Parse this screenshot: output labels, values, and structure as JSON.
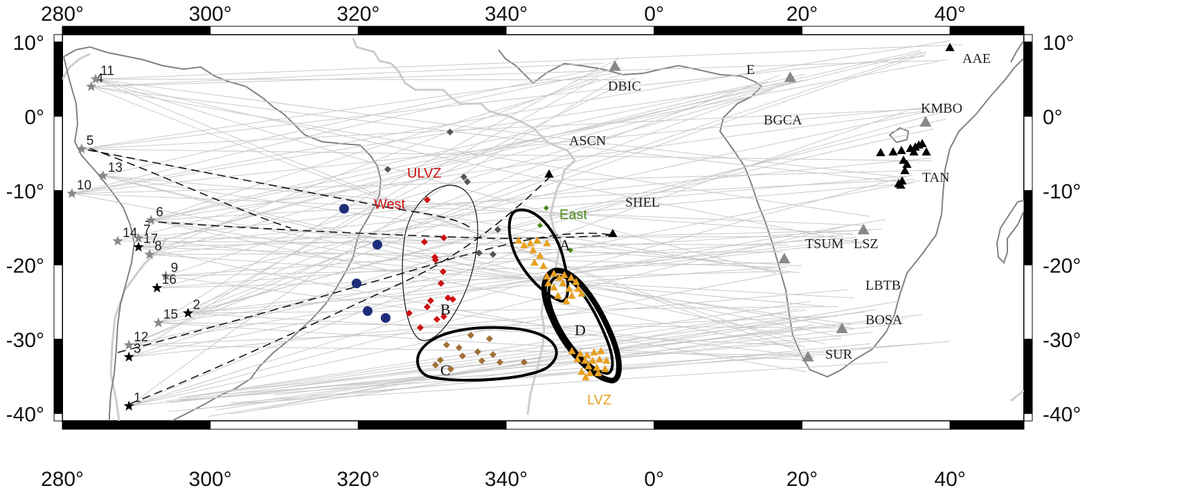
{
  "map": {
    "x_ticks": [
      {
        "label": "280°",
        "lon": 280
      },
      {
        "label": "300°",
        "lon": 300
      },
      {
        "label": "320°",
        "lon": 320
      },
      {
        "label": "340°",
        "lon": 340
      },
      {
        "label": "0°",
        "lon": 360
      },
      {
        "label": "20°",
        "lon": 380
      },
      {
        "label": "40°",
        "lon": 400
      }
    ],
    "y_ticks": [
      {
        "label": "10°",
        "lat": 10
      },
      {
        "label": "0°",
        "lat": 0
      },
      {
        "label": "-10°",
        "lat": -10
      },
      {
        "label": "-20°",
        "lat": -20
      },
      {
        "label": "-30°",
        "lat": -30
      },
      {
        "label": "-40°",
        "lat": -40
      }
    ],
    "lon_range": [
      280,
      410
    ],
    "lat_range": [
      -41,
      11
    ],
    "colors": {
      "ray": "#c8c8c8",
      "coast": "#777777",
      "plate_boundary": "#cccccc",
      "dashed": "#111111",
      "ulvz_west": "#cc1111",
      "ulvz_east": "#4a8a1a",
      "lvz": "#e8a020",
      "zone_c": "#a07038",
      "blue_dot": "#1e2e7a",
      "diamond_gray": "#555555",
      "station": "#888888",
      "black_triangle": "#000000"
    }
  },
  "stations": [
    {
      "name": "DBIC",
      "lon": 354.7,
      "lat": 6.7
    },
    {
      "name": "E",
      "lon": 378.4,
      "lat": 5.2
    },
    {
      "name": "AAE",
      "lon": 398.7,
      "lat": 9.0
    },
    {
      "name": "KMBO",
      "lon": 396.7,
      "lat": -0.8
    },
    {
      "name": "BGCA",
      "lon": 378.5,
      "lat": 1.0
    },
    {
      "name": "ASCN",
      "lon": 345.6,
      "lat": -7.9
    },
    {
      "name": "SHEL",
      "lon": 354.3,
      "lat": -15.9
    },
    {
      "name": "TAN",
      "lon": 395.5,
      "lat": -7.0
    },
    {
      "name": "TSUM",
      "lon": 377.6,
      "lat": -19.2
    },
    {
      "name": "LSZ",
      "lon": 388.3,
      "lat": -15.3
    },
    {
      "name": "LBTB",
      "lon": 385.7,
      "lat": -25.0
    },
    {
      "name": "BOSA",
      "lon": 385.4,
      "lat": -28.6
    },
    {
      "name": "SUR",
      "lon": 380.8,
      "lat": -32.4
    }
  ],
  "station_labels": {
    "DBIC": "DBIC",
    "E": "E",
    "AAE": "AAE",
    "KMBO": "KMBO",
    "BGCA": "BGCA",
    "ASCN": "ASCN",
    "SHEL": "SHEL",
    "TAN": "TAN",
    "TSUM": "TSUM",
    "LSZ": "LSZ",
    "LBTB": "LBTB",
    "BOSA": "BOSA",
    "SUR": "SUR"
  },
  "events": [
    {
      "id": "1",
      "lon": 289.0,
      "lat": -39.0
    },
    {
      "id": "2",
      "lon": 297.0,
      "lat": -26.5
    },
    {
      "id": "4",
      "lon": 283.9,
      "lat": 4.0
    },
    {
      "id": "5",
      "lon": 282.6,
      "lat": -4.4
    },
    {
      "id": "6",
      "lon": 292.0,
      "lat": -14.0
    },
    {
      "id": "7",
      "lon": 290.3,
      "lat": -16.4
    },
    {
      "id": "8",
      "lon": 291.8,
      "lat": -18.6
    },
    {
      "id": "9",
      "lon": 294.0,
      "lat": -21.5
    },
    {
      "id": "10",
      "lon": 281.3,
      "lat": -10.4
    },
    {
      "id": "11",
      "lon": 284.5,
      "lat": 5.0
    },
    {
      "id": "12",
      "lon": 289.0,
      "lat": -30.8
    },
    {
      "id": "13",
      "lon": 285.5,
      "lat": -8.0
    },
    {
      "id": "14",
      "lon": 287.5,
      "lat": -16.8
    },
    {
      "id": "15",
      "lon": 293.0,
      "lat": -27.8
    },
    {
      "id": "16",
      "lon": 292.8,
      "lat": -23.1
    },
    {
      "id": "17",
      "lon": 290.3,
      "lat": -17.6
    },
    {
      "id": "3",
      "lon": 289.0,
      "lat": -32.4
    }
  ],
  "regions": {
    "A": "A",
    "B": "B",
    "C": "C",
    "D": "D",
    "ulvz": "ULVZ",
    "west": "West",
    "east": "East",
    "lvz": "LVZ"
  }
}
